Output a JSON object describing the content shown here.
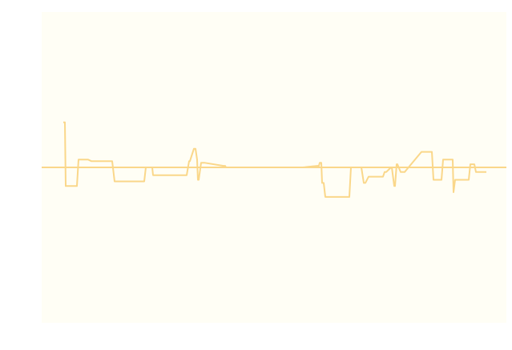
{
  "chart_data": {
    "type": "line",
    "title": "",
    "xlabel": "",
    "ylabel": "",
    "grid": false,
    "legend": "none",
    "colors": {
      "plot_background": "#fffef5",
      "line": "#fad78a",
      "baseline": "#fad78a"
    },
    "xlim": [
      0,
      580
    ],
    "ylim": [
      -10,
      10
    ],
    "baseline_y": 0,
    "series": [
      {
        "x": [
          27,
          29,
          30,
          31,
          44,
          46,
          58,
          62,
          63,
          88,
          91,
          92,
          125,
          128,
          130,
          138,
          139,
          181,
          184,
          185,
          190,
          192,
          194,
          195,
          196,
          199,
          200,
          202,
          203,
          227,
          229,
          230,
          231,
          232,
          238,
          326,
          344,
          346,
          347,
          349,
          350,
          352,
          354,
          384,
          386,
          389,
          399,
          402,
          404,
          408,
          409,
          426,
          428,
          430,
          436,
          437,
          440,
          441,
          443,
          444,
          448,
          451,
          453,
          474,
          476,
          487,
          489,
          499,
          501,
          511,
          513,
          514,
          516,
          533,
          535,
          540,
          542,
          551,
          555
        ],
        "y": [
          2.9,
          2.9,
          -1.2,
          -1.2,
          -1.2,
          0.5,
          0.5,
          0.4,
          0.4,
          0.4,
          -0.9,
          -0.9,
          -0.9,
          -0.9,
          0.0,
          0.0,
          -0.5,
          -0.5,
          0.4,
          0.4,
          1.2,
          1.2,
          0.5,
          -0.8,
          -0.8,
          0.3,
          0.3,
          0.3,
          0.3,
          0.1,
          0.1,
          0.0,
          0.0,
          0.0,
          0.0,
          0.0,
          0.1,
          0.1,
          0.3,
          0.3,
          -1.0,
          -1.0,
          -1.9,
          -1.9,
          0.0,
          0.0,
          0.0,
          -1.0,
          -1.0,
          -0.6,
          -0.6,
          -0.6,
          -0.3,
          -0.3,
          0.0,
          0.0,
          -1.2,
          -1.2,
          0.2,
          0.2,
          -0.3,
          -0.3,
          -0.3,
          1.0,
          1.0,
          1.0,
          -0.8,
          -0.8,
          0.5,
          0.5,
          0.5,
          -1.6,
          -0.8,
          -0.8,
          0.2,
          0.2,
          -0.3,
          -0.3,
          -0.3
        ]
      }
    ]
  }
}
